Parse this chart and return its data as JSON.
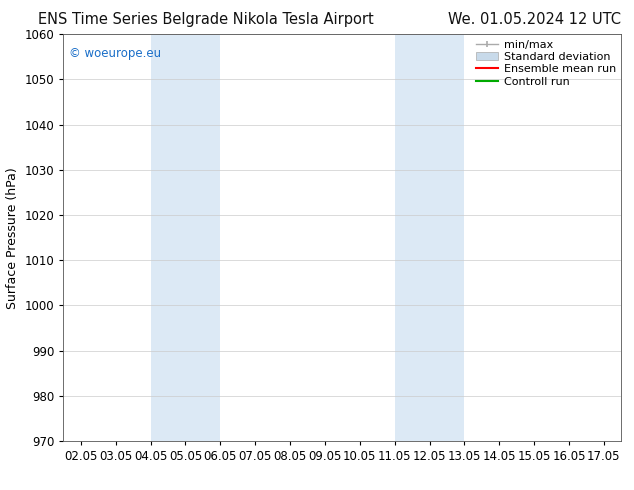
{
  "title_left": "ENS Time Series Belgrade Nikola Tesla Airport",
  "title_right": "We. 01.05.2024 12 UTC",
  "ylabel": "Surface Pressure (hPa)",
  "ylim": [
    970,
    1060
  ],
  "yticks": [
    970,
    980,
    990,
    1000,
    1010,
    1020,
    1030,
    1040,
    1050,
    1060
  ],
  "xtick_labels": [
    "02.05",
    "03.05",
    "04.05",
    "05.05",
    "06.05",
    "07.05",
    "08.05",
    "09.05",
    "10.05",
    "11.05",
    "12.05",
    "13.05",
    "14.05",
    "15.05",
    "16.05",
    "17.05"
  ],
  "xtick_positions": [
    0,
    1,
    2,
    3,
    4,
    5,
    6,
    7,
    8,
    9,
    10,
    11,
    12,
    13,
    14,
    15
  ],
  "xlim": [
    -0.5,
    15.5
  ],
  "shaded_bands": [
    {
      "x_start": 2.0,
      "x_end": 4.0,
      "color": "#dce9f5"
    },
    {
      "x_start": 9.0,
      "x_end": 11.0,
      "color": "#dce9f5"
    }
  ],
  "watermark": "© woeurope.eu",
  "watermark_color": "#1a6ec8",
  "background_color": "#ffffff",
  "grid_color": "#cccccc",
  "spine_color": "#555555",
  "legend_items": [
    {
      "label": "min/max",
      "color": "#aaaaaa",
      "type": "minmax"
    },
    {
      "label": "Standard deviation",
      "color": "#c8daea",
      "type": "patch"
    },
    {
      "label": "Ensemble mean run",
      "color": "#ff0000",
      "type": "line"
    },
    {
      "label": "Controll run",
      "color": "#00aa00",
      "type": "line"
    }
  ],
  "title_fontsize": 10.5,
  "ylabel_fontsize": 9,
  "tick_fontsize": 8.5,
  "legend_fontsize": 8,
  "watermark_fontsize": 8.5
}
